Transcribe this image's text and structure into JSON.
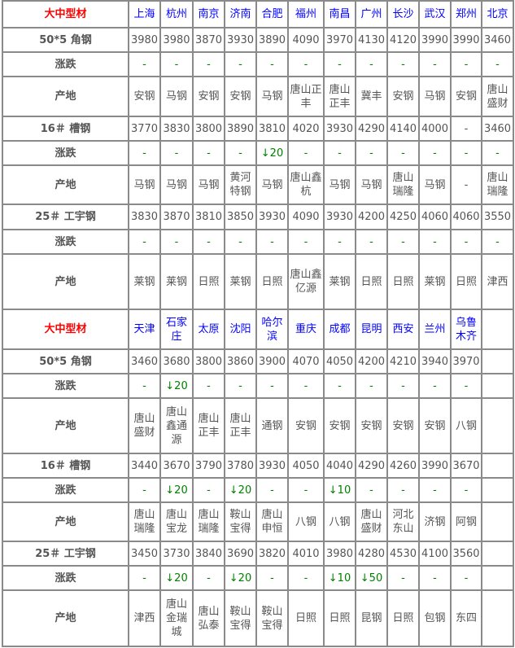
{
  "sections": [
    {
      "title": "大中型材",
      "cities": [
        "上海",
        "杭州",
        "南京",
        "济南",
        "合肥",
        "福州",
        "南昌",
        "广州",
        "长沙",
        "武汉",
        "郑州",
        "北京"
      ],
      "rows": [
        {
          "kind": "price",
          "label": "50*5 角钢",
          "values": [
            "3980",
            "3980",
            "3870",
            "3930",
            "3890",
            "4090",
            "3970",
            "4130",
            "4120",
            "3990",
            "3990",
            "3460"
          ]
        },
        {
          "kind": "change",
          "label": "涨跌",
          "values": [
            "-",
            "-",
            "-",
            "-",
            "-",
            "-",
            "-",
            "-",
            "-",
            "-",
            "-",
            "-"
          ]
        },
        {
          "kind": "origin",
          "label": "产地",
          "values": [
            "安钢",
            "马钢",
            "安钢",
            "安钢",
            "马钢",
            "唐山正丰",
            "唐山正丰",
            "冀丰",
            "安钢",
            "马钢",
            "安钢",
            "唐山盛财"
          ]
        },
        {
          "kind": "price",
          "label": "16＃ 槽钢",
          "values": [
            "3770",
            "3830",
            "3800",
            "3890",
            "3810",
            "4020",
            "3930",
            "4290",
            "4140",
            "4000",
            "-",
            "3460"
          ]
        },
        {
          "kind": "change",
          "label": "涨跌",
          "values": [
            "-",
            "-",
            "-",
            "-",
            "↓20",
            "-",
            "-",
            "-",
            "-",
            "-",
            "-",
            "-"
          ]
        },
        {
          "kind": "origin",
          "label": "产地",
          "values": [
            "马钢",
            "马钢",
            "马钢",
            "黄河特钢",
            "马钢",
            "唐山鑫杭",
            "马钢",
            "马钢",
            "唐山瑞隆",
            "马钢",
            "-",
            "唐山瑞隆"
          ]
        },
        {
          "kind": "price",
          "label": "25＃ 工宇钢",
          "values": [
            "3830",
            "3870",
            "3810",
            "3850",
            "3930",
            "4090",
            "3930",
            "4200",
            "4250",
            "4060",
            "4060",
            "3550"
          ]
        },
        {
          "kind": "change",
          "label": "涨跌",
          "values": [
            "-",
            "-",
            "-",
            "-",
            "-",
            "-",
            "-",
            "-",
            "-",
            "-",
            "-",
            "-"
          ]
        },
        {
          "kind": "origin",
          "label": "产地",
          "values": [
            "莱钢",
            "莱钢",
            "日照",
            "莱钢",
            "日照",
            "唐山鑫亿源",
            "莱钢",
            "日照",
            "日照",
            "莱钢",
            "日照",
            "津西"
          ]
        }
      ]
    },
    {
      "title": "大中型材",
      "cities": [
        "天津",
        "石家庄",
        "太原",
        "沈阳",
        "哈尔滨",
        "重庆",
        "成都",
        "昆明",
        "西安",
        "兰州",
        "乌鲁木齐",
        ""
      ],
      "rows": [
        {
          "kind": "price",
          "label": "50*5 角钢",
          "values": [
            "3460",
            "3680",
            "3800",
            "3860",
            "3900",
            "4070",
            "4050",
            "4200",
            "4210",
            "3940",
            "3970",
            ""
          ]
        },
        {
          "kind": "change",
          "label": "涨跌",
          "values": [
            "-",
            "↓20",
            "-",
            "-",
            "-",
            "-",
            "-",
            "-",
            "-",
            "-",
            "-",
            ""
          ]
        },
        {
          "kind": "origin",
          "label": "产地",
          "values": [
            "唐山盛财",
            "唐山鑫通源",
            "唐山正丰",
            "唐山正丰",
            "通钢",
            "安钢",
            "安钢",
            "安钢",
            "安钢",
            "安钢",
            "八钢",
            ""
          ]
        },
        {
          "kind": "price",
          "label": "16＃ 槽钢",
          "values": [
            "3440",
            "3670",
            "3790",
            "3780",
            "3930",
            "4050",
            "4040",
            "4290",
            "4260",
            "3990",
            "3670",
            ""
          ]
        },
        {
          "kind": "change",
          "label": "涨跌",
          "values": [
            "-",
            "↓20",
            "-",
            "↓20",
            "-",
            "-",
            "↓10",
            "-",
            "-",
            "-",
            "-",
            ""
          ]
        },
        {
          "kind": "origin",
          "label": "产地",
          "values": [
            "唐山瑞隆",
            "唐山宝龙",
            "唐山瑞隆",
            "鞍山宝得",
            "唐山申恒",
            "八钢",
            "八钢",
            "唐山盛财",
            "河北东山",
            "济钢",
            "阿钢",
            ""
          ]
        },
        {
          "kind": "price",
          "label": "25＃ 工宇钢",
          "values": [
            "3450",
            "3730",
            "3840",
            "3690",
            "3820",
            "4010",
            "3980",
            "4280",
            "4530",
            "4100",
            "3560",
            ""
          ]
        },
        {
          "kind": "change",
          "label": "涨跌",
          "values": [
            "-",
            "↓20",
            "-",
            "↓20",
            "-",
            "-",
            "↓10",
            "↓50",
            "-",
            "-",
            "-",
            ""
          ]
        },
        {
          "kind": "origin",
          "label": "产地",
          "values": [
            "津西",
            "唐山金瑞城",
            "唐山弘泰",
            "鞍山宝得",
            "鞍山宝得",
            "日照",
            "日照",
            "昆钢",
            "日照",
            "包钢",
            "东四",
            ""
          ]
        }
      ]
    }
  ],
  "colors": {
    "title": "#ff0000",
    "city": "#0000ff",
    "change": "#008000",
    "text": "#555555",
    "border": "#8a8a8a"
  }
}
